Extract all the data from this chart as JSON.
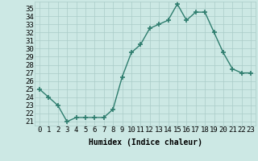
{
  "x": [
    0,
    1,
    2,
    3,
    4,
    5,
    6,
    7,
    8,
    9,
    10,
    11,
    12,
    13,
    14,
    15,
    16,
    17,
    18,
    19,
    20,
    21,
    22,
    23
  ],
  "y": [
    25.0,
    24.0,
    23.0,
    21.0,
    21.5,
    21.5,
    21.5,
    21.5,
    22.5,
    26.5,
    29.5,
    30.5,
    32.5,
    33.0,
    33.5,
    35.5,
    33.5,
    34.5,
    34.5,
    32.0,
    29.5,
    27.5,
    27.0,
    27.0
  ],
  "line_color": "#2e7d6e",
  "marker": "+",
  "markersize": 4,
  "markeredgewidth": 1.2,
  "linewidth": 1.0,
  "bg_color": "#cce8e4",
  "grid_color": "#aaccc8",
  "xlabel": "Humidex (Indice chaleur)",
  "ylabel_ticks": [
    21,
    22,
    23,
    24,
    25,
    26,
    27,
    28,
    29,
    30,
    31,
    32,
    33,
    34,
    35
  ],
  "ylim": [
    20.5,
    35.8
  ],
  "xlim": [
    -0.5,
    23.5
  ],
  "xlabel_fontsize": 7,
  "tick_fontsize": 6.5
}
